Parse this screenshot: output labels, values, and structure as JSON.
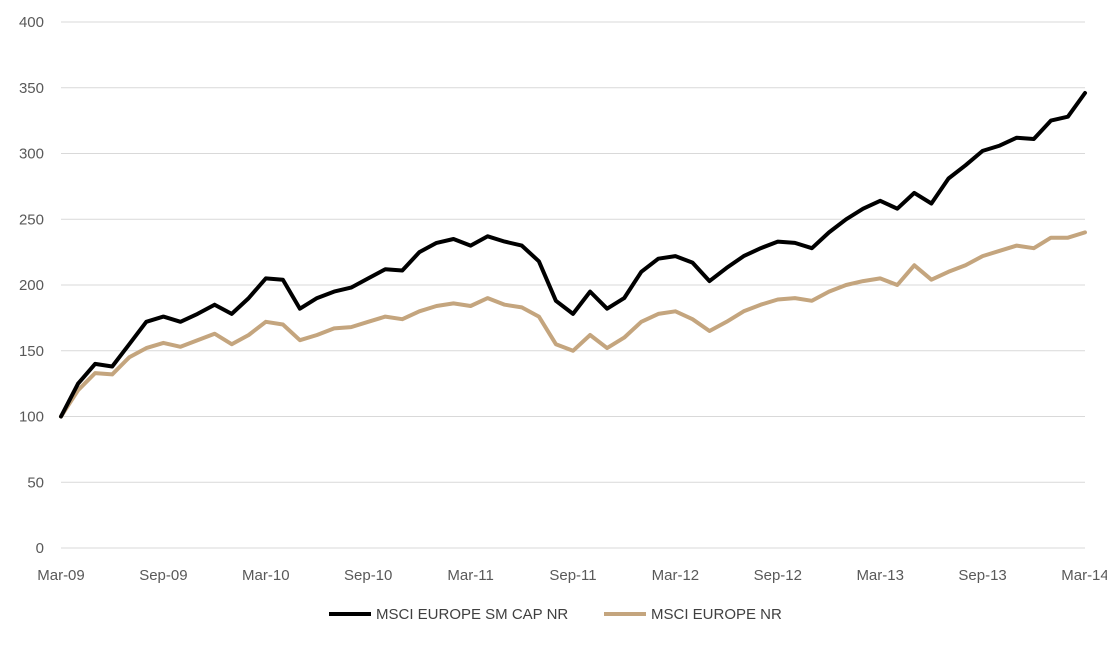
{
  "chart_data": {
    "type": "line",
    "title": "",
    "xlabel": "",
    "ylabel": "",
    "ylim": [
      0,
      400
    ],
    "yticks": [
      0,
      50,
      100,
      150,
      200,
      250,
      300,
      350,
      400
    ],
    "xlim": [
      "2009-03",
      "2014-03"
    ],
    "xticks": [
      "Mar-09",
      "Sep-09",
      "Mar-10",
      "Sep-10",
      "Mar-11",
      "Sep-11",
      "Mar-12",
      "Sep-12",
      "Mar-13",
      "Sep-13",
      "Mar-14"
    ],
    "grid": true,
    "legend": "bottom",
    "series": [
      {
        "name": "MSCI EUROPE SM CAP NR",
        "color": "#000000",
        "x": [
          "2009-03",
          "2009-04",
          "2009-05",
          "2009-06",
          "2009-07",
          "2009-08",
          "2009-09",
          "2009-10",
          "2009-11",
          "2009-12",
          "2010-01",
          "2010-02",
          "2010-03",
          "2010-04",
          "2010-05",
          "2010-06",
          "2010-07",
          "2010-08",
          "2010-09",
          "2010-10",
          "2010-11",
          "2010-12",
          "2011-01",
          "2011-02",
          "2011-03",
          "2011-04",
          "2011-05",
          "2011-06",
          "2011-07",
          "2011-08",
          "2011-09",
          "2011-10",
          "2011-11",
          "2011-12",
          "2012-01",
          "2012-02",
          "2012-03",
          "2012-04",
          "2012-05",
          "2012-06",
          "2012-07",
          "2012-08",
          "2012-09",
          "2012-10",
          "2012-11",
          "2012-12",
          "2013-01",
          "2013-02",
          "2013-03",
          "2013-04",
          "2013-05",
          "2013-06",
          "2013-07",
          "2013-08",
          "2013-09",
          "2013-10",
          "2013-11",
          "2013-12",
          "2014-01",
          "2014-02",
          "2014-03"
        ],
        "values": [
          100,
          125,
          140,
          138,
          155,
          172,
          176,
          172,
          178,
          185,
          178,
          190,
          205,
          204,
          182,
          190,
          195,
          198,
          205,
          212,
          211,
          225,
          232,
          235,
          230,
          237,
          233,
          230,
          218,
          188,
          178,
          195,
          182,
          190,
          210,
          220,
          222,
          217,
          203,
          213,
          222,
          228,
          233,
          232,
          228,
          240,
          250,
          258,
          264,
          258,
          270,
          262,
          281,
          291,
          302,
          306,
          312,
          311,
          325,
          328,
          346
        ]
      },
      {
        "name": "MSCI EUROPE NR",
        "color": "#c4a57e",
        "x": [
          "2009-03",
          "2009-04",
          "2009-05",
          "2009-06",
          "2009-07",
          "2009-08",
          "2009-09",
          "2009-10",
          "2009-11",
          "2009-12",
          "2010-01",
          "2010-02",
          "2010-03",
          "2010-04",
          "2010-05",
          "2010-06",
          "2010-07",
          "2010-08",
          "2010-09",
          "2010-10",
          "2010-11",
          "2010-12",
          "2011-01",
          "2011-02",
          "2011-03",
          "2011-04",
          "2011-05",
          "2011-06",
          "2011-07",
          "2011-08",
          "2011-09",
          "2011-10",
          "2011-11",
          "2011-12",
          "2012-01",
          "2012-02",
          "2012-03",
          "2012-04",
          "2012-05",
          "2012-06",
          "2012-07",
          "2012-08",
          "2012-09",
          "2012-10",
          "2012-11",
          "2012-12",
          "2013-01",
          "2013-02",
          "2013-03",
          "2013-04",
          "2013-05",
          "2013-06",
          "2013-07",
          "2013-08",
          "2013-09",
          "2013-10",
          "2013-11",
          "2013-12",
          "2014-01",
          "2014-02",
          "2014-03"
        ],
        "values": [
          100,
          120,
          133,
          132,
          145,
          152,
          156,
          153,
          158,
          163,
          155,
          162,
          172,
          170,
          158,
          162,
          167,
          168,
          172,
          176,
          174,
          180,
          184,
          186,
          184,
          190,
          185,
          183,
          176,
          155,
          150,
          162,
          152,
          160,
          172,
          178,
          180,
          174,
          165,
          172,
          180,
          185,
          189,
          190,
          188,
          195,
          200,
          203,
          205,
          200,
          215,
          204,
          210,
          215,
          222,
          226,
          230,
          228,
          236,
          236,
          240
        ]
      }
    ]
  }
}
